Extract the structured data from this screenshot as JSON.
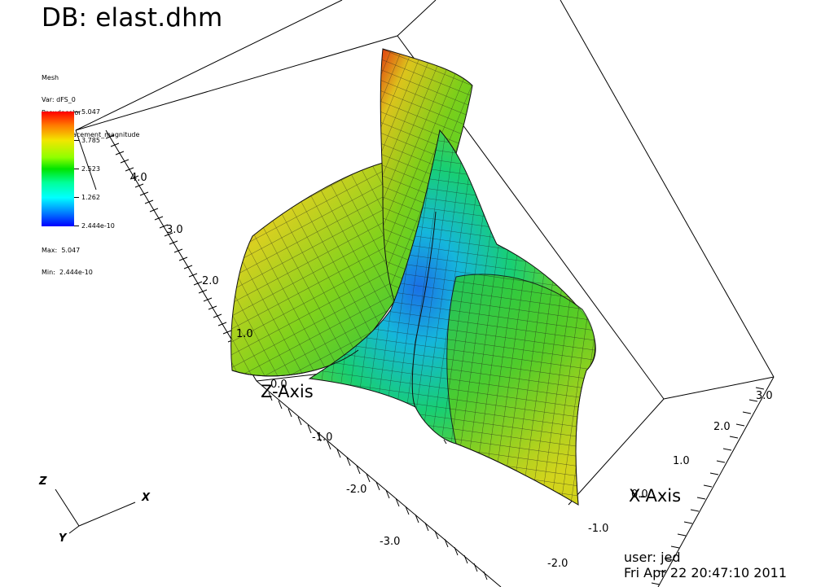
{
  "title": "DB: elast.dhm",
  "mesh_legend": {
    "heading": "Mesh",
    "var": "Var: dFS_0"
  },
  "pseudocolor_legend": {
    "heading": "Pseudocolor",
    "var": "Var: Displacement_magnitude",
    "ticks": [
      "5.047",
      "3.785",
      "2.523",
      "1.262",
      "2.444e-10"
    ],
    "max": "Max:  5.047",
    "min": "Min:  2.444e-10",
    "colors": [
      "#ff0000",
      "#f2e600",
      "#00e400",
      "#00ffff",
      "#0000ff"
    ]
  },
  "axes": {
    "z_label": "Z-Axis",
    "x_label": "X-Axis",
    "z_ticks": [
      "4.0",
      "3.0",
      "2.0",
      "1.0",
      "0.0"
    ],
    "y_ticks": [
      "0.0",
      "-1.0",
      "-2.0",
      "-3.0"
    ],
    "x_ticks": [
      "3.0",
      "2.0",
      "1.0",
      "0.0",
      "-1.0",
      "-2.0"
    ]
  },
  "triad": {
    "z": "Z",
    "x": "X",
    "y": "Y"
  },
  "footer": {
    "user": "user: jed",
    "date": "Fri Apr 22 20:47:10 2011"
  }
}
